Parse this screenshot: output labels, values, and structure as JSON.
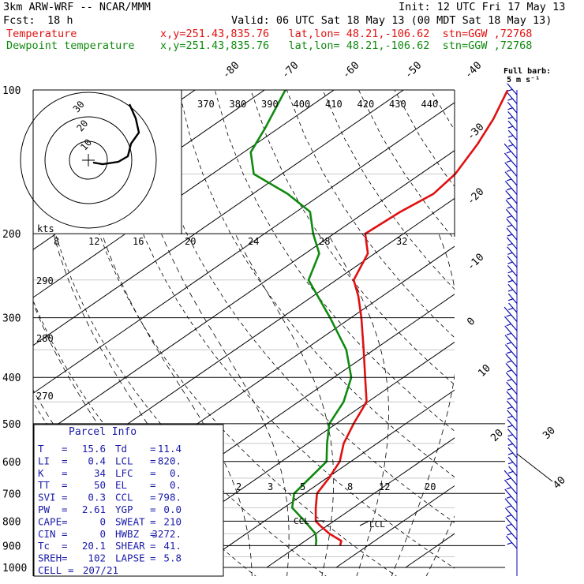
{
  "header": {
    "model": "3km ARW-WRF -- NCAR/MMM",
    "init": "Init: 12 UTC Fri 17 May 13",
    "fcst_label": "Fcst:",
    "fcst_value": "18 h",
    "valid": "Valid: 06 UTC Sat 18 May 13 (00 MDT Sat 18 May 13)",
    "temperature_label": "Temperature",
    "dewpoint_label": "Dewpoint temperature",
    "temp_location": "x,y=251.43,835.76   lat,lon= 48.21,-106.62  stn=GGW ,72768",
    "dew_location": "x,y=251.43,835.76   lat,lon= 48.21,-106.62  stn=GGW ,72768"
  },
  "barb_note": {
    "line1": "Full barb:",
    "line2": "5 m s⁻¹"
  },
  "hodograph": {
    "units": "kts"
  },
  "parcel_info": {
    "title": "Parcel Info",
    "rows": [
      {
        "l1": "T",
        "v1": "15.6",
        "l2": "Td",
        "v2": "11.4"
      },
      {
        "l1": "LI",
        "v1": "0.4",
        "l2": "LCL",
        "v2": "820."
      },
      {
        "l1": "K",
        "v1": "34",
        "l2": "LFC",
        "v2": "0."
      },
      {
        "l1": "TT",
        "v1": "50",
        "l2": "EL",
        "v2": "0."
      },
      {
        "l1": "SVI",
        "v1": "0.3",
        "l2": "CCL",
        "v2": "798."
      },
      {
        "l1": "PW",
        "v1": "2.61",
        "l2": "YGP",
        "v2": "0.0"
      },
      {
        "l1": "CAPE",
        "v1": "0",
        "l2": "SWEAT",
        "v2": "210"
      },
      {
        "l1": "CIN",
        "v1": "0",
        "l2": "HWBZ",
        "v2": "3272."
      },
      {
        "l1": "Tc",
        "v1": "20.1",
        "l2": "SHEAR",
        "v2": "41."
      },
      {
        "l1": "SREH",
        "v1": "102",
        "l2": "LAPSE",
        "v2": "5.8"
      },
      {
        "l1": "CELL",
        "v1": "207/21",
        "l2": "",
        "v2": ""
      }
    ]
  },
  "chart_data": {
    "type": "line",
    "subtype": "skew-T log-p",
    "y_axis": {
      "label": "",
      "ticks": [
        100,
        200,
        300,
        400,
        500,
        600,
        700,
        800,
        900,
        1000
      ],
      "scale": "log",
      "range": [
        1000,
        100
      ]
    },
    "isotherm_labels_top": [
      "-80",
      "-70",
      "-60",
      "-50",
      "-40"
    ],
    "isotherm_labels_right": [
      "-30",
      "-20",
      "-10",
      "0",
      "10",
      "20",
      "30",
      "40"
    ],
    "theta_e_labels": [
      "370",
      "380",
      "390",
      "400",
      "410",
      "420",
      "430",
      "440"
    ],
    "theta_labels": [
      "290",
      "280",
      "270"
    ],
    "mixing_ratio_labels_upper": [
      "8",
      "12",
      "16",
      "20",
      "24",
      "28",
      "32"
    ],
    "mixing_ratio_labels_lower": [
      "2",
      "3",
      "5",
      "8",
      "12",
      "20"
    ],
    "level_labels": [
      "CCL",
      "LCL"
    ],
    "series": [
      {
        "name": "Temperature",
        "color": "#e01010",
        "points": [
          [
            900,
            16.0
          ],
          [
            880,
            15.2
          ],
          [
            850,
            12.0
          ],
          [
            820,
            9.2
          ],
          [
            800,
            7.4
          ],
          [
            750,
            4.6
          ],
          [
            700,
            1.8
          ],
          [
            650,
            0.3
          ],
          [
            600,
            -1.6
          ],
          [
            550,
            -4.8
          ],
          [
            500,
            -7.5
          ],
          [
            450,
            -10.2
          ],
          [
            400,
            -15.5
          ],
          [
            350,
            -21.5
          ],
          [
            300,
            -28.5
          ],
          [
            270,
            -33.5
          ],
          [
            250,
            -37.5
          ],
          [
            220,
            -41.0
          ],
          [
            200,
            -45.5
          ],
          [
            180,
            -45.0
          ],
          [
            165,
            -44.0
          ],
          [
            150,
            -45.0
          ],
          [
            130,
            -48.0
          ],
          [
            115,
            -51.0
          ],
          [
            100,
            -55.0
          ]
        ]
      },
      {
        "name": "Dewpoint temperature",
        "color": "#108a10",
        "points": [
          [
            900,
            12.5
          ],
          [
            880,
            11.6
          ],
          [
            850,
            10.0
          ],
          [
            800,
            5.8
          ],
          [
            750,
            1.2
          ],
          [
            700,
            -1.5
          ],
          [
            600,
            -3.5
          ],
          [
            550,
            -7.2
          ],
          [
            500,
            -11.0
          ],
          [
            450,
            -13.5
          ],
          [
            400,
            -17.5
          ],
          [
            350,
            -24.0
          ],
          [
            300,
            -33.0
          ],
          [
            250,
            -44.0
          ],
          [
            220,
            -48.0
          ],
          [
            200,
            -53.0
          ],
          [
            180,
            -58.0
          ],
          [
            165,
            -65.0
          ],
          [
            150,
            -74.0
          ],
          [
            135,
            -79.0
          ],
          [
            120,
            -82.0
          ],
          [
            100,
            -87.0
          ]
        ]
      }
    ],
    "hodograph_rings": [
      10,
      20,
      30
    ],
    "grid": true
  },
  "colors": {
    "temperature": "#e01010",
    "dewpoint": "#108a10",
    "hodograph": "#000000",
    "barbs": "#0a0ab0"
  }
}
